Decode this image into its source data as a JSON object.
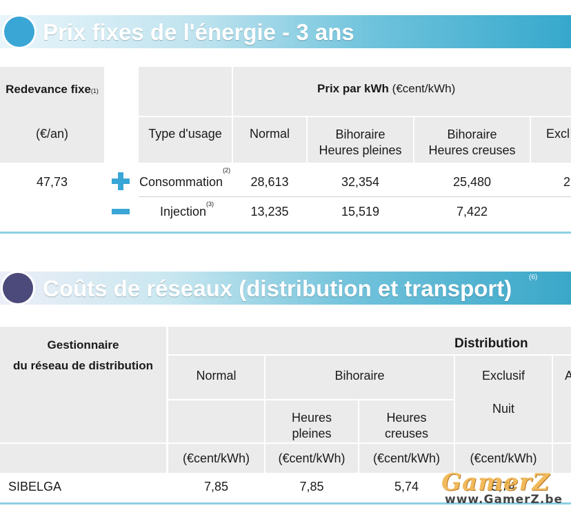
{
  "section1": {
    "title": "Prix fixes de l'énergie - 3 ans",
    "fee_label": "Redevance fixe",
    "fee_note": "(1)",
    "fee_unit": "(€/an)",
    "price_header_bold": "Prix par kWh",
    "price_header_unit": "(€cent/kWh)",
    "col_type": "Type d'usage",
    "col_normal": "Normal",
    "col_bih_peak_1": "Bihoraire",
    "col_bih_peak_2": "Heures pleines",
    "col_bih_off_1": "Bihoraire",
    "col_bih_off_2": "Heures creuses",
    "col_excl": "Excl",
    "fee_value": "47,73",
    "rows": [
      {
        "label": "Consommation",
        "note": "(2)",
        "normal": "28,613",
        "peak": "32,354",
        "offpeak": "25,480",
        "excl": "2"
      },
      {
        "label": "Injection",
        "note": "(3)",
        "normal": "13,235",
        "peak": "15,519",
        "offpeak": "7,422"
      }
    ]
  },
  "section2": {
    "title": "Coûts de réseaux (distribution et transport)",
    "title_note": "(6)",
    "manager_1": "Gestionnaire",
    "manager_2": "du réseau de distribution",
    "distribution": "Distribution",
    "col_normal": "Normal",
    "col_bihoraire": "Bihoraire",
    "col_exclusif": "Exclusif",
    "col_cut": "A",
    "sub_peak_1": "Heures",
    "sub_peak_2": "pleines",
    "sub_off_1": "Heures",
    "sub_off_2": "creuses",
    "sub_nuit": "Nuit",
    "unit": "(€cent/kWh)",
    "row": {
      "name": "SIBELGA",
      "normal": "7,85",
      "peak": "7,85",
      "offpeak": "5,74",
      "excl": "5,74"
    }
  },
  "watermark": {
    "logo": "GamerZ",
    "url": "www.GamerZ.be"
  },
  "colors": {
    "accent": "#3aa6d6",
    "dark_circle": "#4c4a7a",
    "header_grey": "#ebebeb"
  }
}
